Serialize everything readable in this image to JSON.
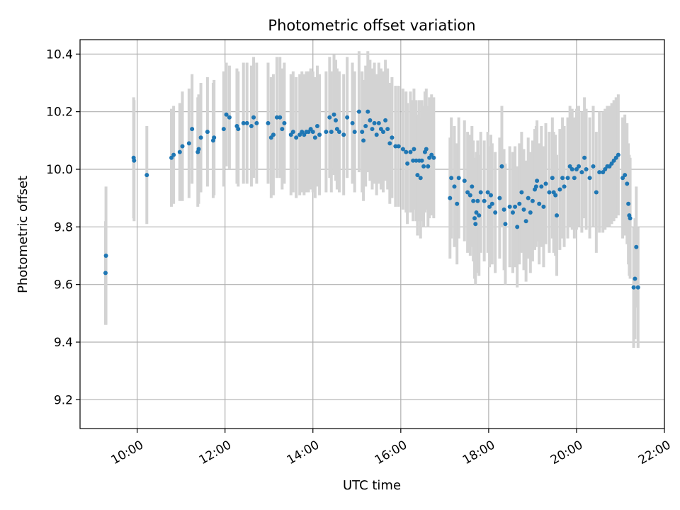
{
  "chart_data": {
    "type": "scatter",
    "title": "Photometric offset variation",
    "xlabel": "UTC time",
    "ylabel": "Photometric offset",
    "x_unit": "hours UTC",
    "xlim": [
      8.7,
      22.0
    ],
    "ylim": [
      9.1,
      10.45
    ],
    "grid": true,
    "x_ticks": [
      {
        "value": 10,
        "label": "10:00"
      },
      {
        "value": 12,
        "label": "12:00"
      },
      {
        "value": 14,
        "label": "14:00"
      },
      {
        "value": 16,
        "label": "16:00"
      },
      {
        "value": 18,
        "label": "18:00"
      },
      {
        "value": 20,
        "label": "20:00"
      },
      {
        "value": 22,
        "label": "22:00"
      }
    ],
    "y_ticks": [
      {
        "value": 9.2,
        "label": "9.2"
      },
      {
        "value": 9.4,
        "label": "9.4"
      },
      {
        "value": 9.6,
        "label": "9.6"
      },
      {
        "value": 9.8,
        "label": "9.8"
      },
      {
        "value": 10.0,
        "label": "10.0"
      },
      {
        "value": 10.2,
        "label": "10.2"
      },
      {
        "value": 10.4,
        "label": "10.4"
      }
    ],
    "point_color": "#1f77b4",
    "errorbar_color": "#d3d3d3",
    "series": [
      {
        "name": "Photometric offset",
        "points": [
          [
            9.28,
            9.64,
            0.18
          ],
          [
            9.29,
            9.7,
            0.24
          ],
          [
            9.92,
            10.04,
            0.21
          ],
          [
            9.93,
            10.03,
            0.21
          ],
          [
            10.22,
            9.98,
            0.17
          ],
          [
            10.78,
            10.04,
            0.17
          ],
          [
            10.83,
            10.05,
            0.17
          ],
          [
            10.97,
            10.06,
            0.17
          ],
          [
            11.03,
            10.08,
            0.19
          ],
          [
            11.18,
            10.09,
            0.19
          ],
          [
            11.25,
            10.14,
            0.19
          ],
          [
            11.38,
            10.06,
            0.19
          ],
          [
            11.4,
            10.07,
            0.19
          ],
          [
            11.45,
            10.11,
            0.19
          ],
          [
            11.6,
            10.13,
            0.19
          ],
          [
            11.73,
            10.1,
            0.2
          ],
          [
            11.75,
            10.11,
            0.2
          ],
          [
            11.97,
            10.14,
            0.2
          ],
          [
            12.03,
            10.19,
            0.18
          ],
          [
            12.1,
            10.18,
            0.18
          ],
          [
            12.27,
            10.15,
            0.2
          ],
          [
            12.3,
            10.14,
            0.2
          ],
          [
            12.42,
            10.16,
            0.21
          ],
          [
            12.5,
            10.16,
            0.21
          ],
          [
            12.6,
            10.15,
            0.21
          ],
          [
            12.65,
            10.18,
            0.21
          ],
          [
            12.72,
            10.16,
            0.21
          ],
          [
            12.98,
            10.16,
            0.21
          ],
          [
            13.05,
            10.11,
            0.21
          ],
          [
            13.1,
            10.12,
            0.21
          ],
          [
            13.18,
            10.18,
            0.21
          ],
          [
            13.25,
            10.18,
            0.21
          ],
          [
            13.3,
            10.14,
            0.21
          ],
          [
            13.35,
            10.16,
            0.21
          ],
          [
            13.5,
            10.12,
            0.21
          ],
          [
            13.55,
            10.13,
            0.21
          ],
          [
            13.62,
            10.11,
            0.21
          ],
          [
            13.7,
            10.12,
            0.21
          ],
          [
            13.75,
            10.13,
            0.21
          ],
          [
            13.8,
            10.12,
            0.21
          ],
          [
            13.85,
            10.13,
            0.21
          ],
          [
            13.9,
            10.13,
            0.21
          ],
          [
            13.95,
            10.14,
            0.21
          ],
          [
            14.0,
            10.13,
            0.21
          ],
          [
            14.05,
            10.11,
            0.21
          ],
          [
            14.1,
            10.15,
            0.21
          ],
          [
            14.15,
            10.12,
            0.21
          ],
          [
            14.3,
            10.13,
            0.21
          ],
          [
            14.38,
            10.18,
            0.21
          ],
          [
            14.42,
            10.13,
            0.21
          ],
          [
            14.48,
            10.19,
            0.21
          ],
          [
            14.52,
            10.17,
            0.21
          ],
          [
            14.55,
            10.14,
            0.21
          ],
          [
            14.6,
            10.13,
            0.21
          ],
          [
            14.7,
            10.12,
            0.21
          ],
          [
            14.78,
            10.18,
            0.21
          ],
          [
            14.9,
            10.16,
            0.21
          ],
          [
            14.95,
            10.13,
            0.21
          ],
          [
            15.05,
            10.2,
            0.21
          ],
          [
            15.12,
            10.13,
            0.21
          ],
          [
            15.15,
            10.1,
            0.21
          ],
          [
            15.2,
            10.15,
            0.21
          ],
          [
            15.25,
            10.2,
            0.21
          ],
          [
            15.3,
            10.17,
            0.21
          ],
          [
            15.35,
            10.14,
            0.21
          ],
          [
            15.4,
            10.16,
            0.21
          ],
          [
            15.45,
            10.12,
            0.21
          ],
          [
            15.5,
            10.16,
            0.21
          ],
          [
            15.55,
            10.14,
            0.21
          ],
          [
            15.6,
            10.13,
            0.21
          ],
          [
            15.65,
            10.17,
            0.21
          ],
          [
            15.7,
            10.14,
            0.21
          ],
          [
            15.75,
            10.09,
            0.21
          ],
          [
            15.8,
            10.11,
            0.21
          ],
          [
            15.88,
            10.08,
            0.21
          ],
          [
            15.95,
            10.08,
            0.21
          ],
          [
            16.05,
            10.07,
            0.21
          ],
          [
            16.12,
            10.06,
            0.21
          ],
          [
            16.15,
            10.02,
            0.21
          ],
          [
            16.22,
            10.06,
            0.21
          ],
          [
            16.28,
            10.03,
            0.21
          ],
          [
            16.3,
            10.07,
            0.21
          ],
          [
            16.35,
            10.03,
            0.21
          ],
          [
            16.38,
            9.98,
            0.21
          ],
          [
            16.42,
            10.03,
            0.21
          ],
          [
            16.45,
            9.97,
            0.21
          ],
          [
            16.48,
            10.03,
            0.21
          ],
          [
            16.52,
            10.01,
            0.21
          ],
          [
            16.55,
            10.06,
            0.21
          ],
          [
            16.58,
            10.07,
            0.21
          ],
          [
            16.62,
            10.01,
            0.21
          ],
          [
            16.65,
            10.04,
            0.21
          ],
          [
            16.7,
            10.05,
            0.21
          ],
          [
            16.75,
            10.04,
            0.21
          ],
          [
            17.12,
            9.9,
            0.21
          ],
          [
            17.15,
            9.97,
            0.21
          ],
          [
            17.22,
            9.94,
            0.21
          ],
          [
            17.28,
            9.88,
            0.21
          ],
          [
            17.32,
            9.97,
            0.21
          ],
          [
            17.45,
            9.96,
            0.21
          ],
          [
            17.52,
            9.92,
            0.21
          ],
          [
            17.58,
            9.91,
            0.21
          ],
          [
            17.62,
            9.94,
            0.21
          ],
          [
            17.65,
            9.89,
            0.21
          ],
          [
            17.68,
            9.83,
            0.21
          ],
          [
            17.7,
            9.81,
            0.21
          ],
          [
            17.72,
            9.85,
            0.21
          ],
          [
            17.75,
            9.89,
            0.21
          ],
          [
            17.78,
            9.84,
            0.21
          ],
          [
            17.82,
            9.92,
            0.21
          ],
          [
            17.9,
            9.89,
            0.21
          ],
          [
            17.98,
            9.92,
            0.21
          ],
          [
            18.02,
            9.87,
            0.21
          ],
          [
            18.05,
            9.91,
            0.21
          ],
          [
            18.08,
            9.88,
            0.21
          ],
          [
            18.15,
            9.85,
            0.21
          ],
          [
            18.25,
            9.9,
            0.21
          ],
          [
            18.3,
            10.01,
            0.21
          ],
          [
            18.35,
            9.86,
            0.21
          ],
          [
            18.38,
            9.81,
            0.21
          ],
          [
            18.48,
            9.87,
            0.21
          ],
          [
            18.55,
            9.85,
            0.21
          ],
          [
            18.6,
            9.87,
            0.21
          ],
          [
            18.65,
            9.8,
            0.21
          ],
          [
            18.7,
            9.88,
            0.21
          ],
          [
            18.75,
            9.92,
            0.21
          ],
          [
            18.8,
            9.86,
            0.21
          ],
          [
            18.85,
            9.82,
            0.21
          ],
          [
            18.9,
            9.9,
            0.21
          ],
          [
            18.95,
            9.85,
            0.21
          ],
          [
            19.0,
            9.89,
            0.21
          ],
          [
            19.05,
            9.93,
            0.21
          ],
          [
            19.08,
            9.94,
            0.21
          ],
          [
            19.1,
            9.96,
            0.21
          ],
          [
            19.15,
            9.88,
            0.21
          ],
          [
            19.2,
            9.94,
            0.21
          ],
          [
            19.25,
            9.87,
            0.21
          ],
          [
            19.3,
            9.95,
            0.21
          ],
          [
            19.38,
            9.92,
            0.21
          ],
          [
            19.45,
            9.97,
            0.21
          ],
          [
            19.48,
            9.92,
            0.21
          ],
          [
            19.52,
            9.91,
            0.21
          ],
          [
            19.55,
            9.84,
            0.21
          ],
          [
            19.62,
            9.93,
            0.21
          ],
          [
            19.68,
            9.97,
            0.21
          ],
          [
            19.72,
            9.94,
            0.21
          ],
          [
            19.8,
            9.97,
            0.21
          ],
          [
            19.85,
            10.01,
            0.21
          ],
          [
            19.9,
            10.0,
            0.21
          ],
          [
            19.95,
            9.97,
            0.21
          ],
          [
            20.0,
            10.0,
            0.21
          ],
          [
            20.05,
            10.01,
            0.21
          ],
          [
            20.12,
            9.99,
            0.21
          ],
          [
            20.18,
            10.04,
            0.21
          ],
          [
            20.22,
            10.0,
            0.21
          ],
          [
            20.3,
            9.97,
            0.21
          ],
          [
            20.38,
            10.01,
            0.21
          ],
          [
            20.45,
            9.92,
            0.21
          ],
          [
            20.52,
            9.99,
            0.21
          ],
          [
            20.6,
            9.99,
            0.21
          ],
          [
            20.65,
            10.0,
            0.21
          ],
          [
            20.7,
            10.01,
            0.21
          ],
          [
            20.75,
            10.01,
            0.21
          ],
          [
            20.8,
            10.02,
            0.21
          ],
          [
            20.85,
            10.03,
            0.21
          ],
          [
            20.9,
            10.04,
            0.21
          ],
          [
            20.95,
            10.05,
            0.21
          ],
          [
            21.05,
            9.97,
            0.21
          ],
          [
            21.1,
            9.98,
            0.21
          ],
          [
            21.15,
            9.95,
            0.21
          ],
          [
            21.18,
            9.88,
            0.21
          ],
          [
            21.2,
            9.84,
            0.21
          ],
          [
            21.22,
            9.83,
            0.21
          ],
          [
            21.3,
            9.59,
            0.21
          ],
          [
            21.33,
            9.62,
            0.21
          ],
          [
            21.36,
            9.73,
            0.21
          ],
          [
            21.4,
            9.59,
            0.21
          ]
        ]
      }
    ]
  }
}
